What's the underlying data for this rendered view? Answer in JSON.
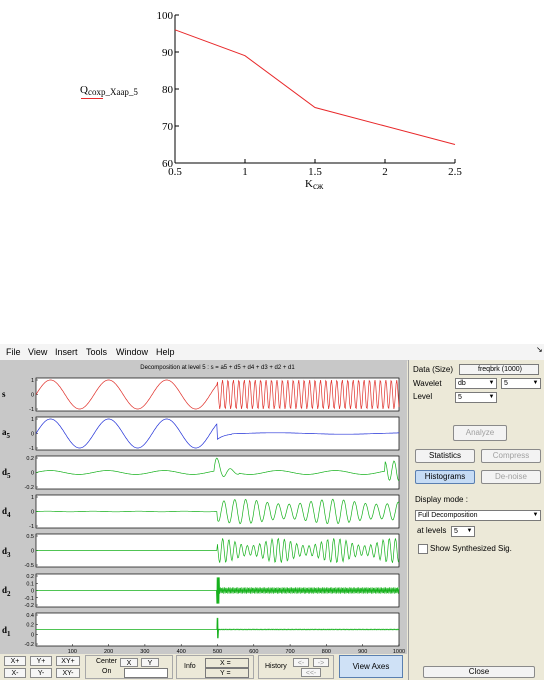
{
  "top_chart": {
    "chart_data": {
      "type": "line",
      "x": [
        0.5,
        1,
        1.5,
        2,
        2.5
      ],
      "series": [
        {
          "name": "Qcoxp_Xaap_5",
          "values": [
            96,
            89,
            75,
            70,
            65
          ]
        }
      ],
      "xlabel": "Kcж",
      "ylabel": "Qcoxp_Xaap_5",
      "xlim": [
        0.5,
        2.5
      ],
      "ylim": [
        60,
        100
      ],
      "x_ticks": [
        "0.5",
        "1",
        "1.5",
        "2",
        "2.5"
      ],
      "y_ticks": [
        "60",
        "70",
        "80",
        "90",
        "100"
      ],
      "line_color": "#e8282a",
      "grid": false
    },
    "ylabel_main": "Q",
    "ylabel_sub": "coxp_Xaap_5",
    "xlabel_main": "K",
    "xlabel_sub": "cж"
  },
  "menu": {
    "items": [
      "File",
      "View",
      "Insert",
      "Tools",
      "Window",
      "Help"
    ]
  },
  "plots": {
    "title": "Decomposition at level 5 : s = a5 + d5 + d4 + d3 + d2 + d1",
    "rows": [
      {
        "label": "s",
        "sub": "",
        "color": "#e0302a",
        "ticks": [
          "1",
          "0",
          "-1"
        ]
      },
      {
        "label": "a",
        "sub": "5",
        "color": "#2433d8",
        "ticks": [
          "1",
          "0",
          "-1"
        ]
      },
      {
        "label": "d",
        "sub": "5",
        "color": "#16b11c",
        "ticks": [
          "0.2",
          "0",
          "-0.2"
        ]
      },
      {
        "label": "d",
        "sub": "4",
        "color": "#16b11c",
        "ticks": [
          "1",
          "0",
          "-1"
        ]
      },
      {
        "label": "d",
        "sub": "3",
        "color": "#16b11c",
        "ticks": [
          "0.5",
          "0",
          "-0.5"
        ]
      },
      {
        "label": "d",
        "sub": "2",
        "color": "#16b11c",
        "ticks": [
          "0.2",
          "0.1",
          "0",
          "-0.1",
          "-0.2"
        ]
      },
      {
        "label": "d",
        "sub": "1",
        "color": "#16b11c",
        "ticks": [
          "0.4",
          "0.2",
          "0",
          "-0.2"
        ]
      }
    ],
    "x_ticks": [
      "100",
      "200",
      "300",
      "400",
      "500",
      "600",
      "700",
      "800",
      "900",
      "1000"
    ]
  },
  "right_panel": {
    "data_label": "Data  (Size)",
    "data_value": "freqbrk  (1000)",
    "wavelet_label": "Wavelet",
    "wavelet_family": "db",
    "wavelet_order": "5",
    "level_label": "Level",
    "level_value": "5",
    "analyze": "Analyze",
    "statistics": "Statistics",
    "compress": "Compress",
    "histograms": "Histograms",
    "denoise": "De-noise",
    "display_mode_label": "Display mode :",
    "display_mode_value": "Full Decomposition",
    "at_levels_label": "at levels",
    "at_levels_value": "5",
    "show_synth": "Show Synthesized Sig.",
    "close": "Close"
  },
  "bottom_bar": {
    "xplus": "X+",
    "yplus": "Y+",
    "xyplus": "XY+",
    "xminus": "X-",
    "yminus": "Y-",
    "xyminus": "XY-",
    "center": "Center",
    "on": "On",
    "center_x": "X",
    "center_y": "Y",
    "info": "Info",
    "info_x": "X =",
    "info_y": "Y =",
    "history": "History",
    "hist_back": "<-",
    "hist_fwd": "->",
    "hist_first": "<<-",
    "view_axes": "View Axes"
  }
}
